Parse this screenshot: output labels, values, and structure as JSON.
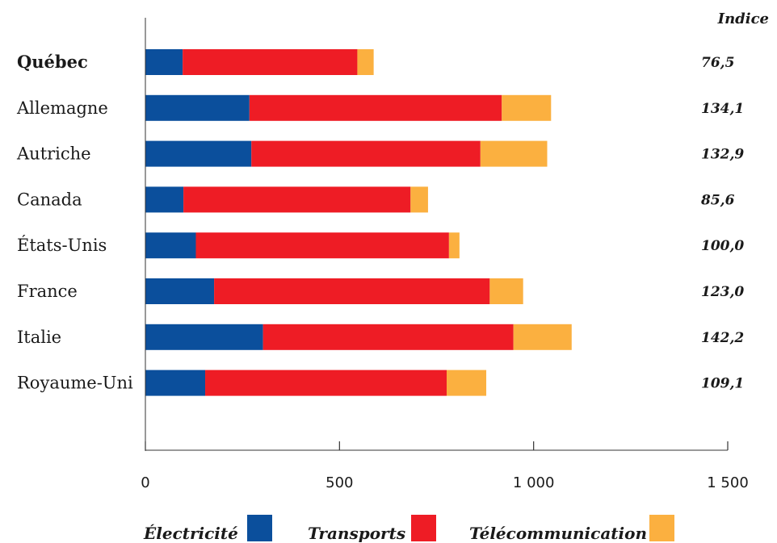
{
  "chart_data": {
    "type": "bar",
    "orientation": "horizontal",
    "stacked": true,
    "categories": [
      "Québec",
      "Allemagne",
      "Autriche",
      "Canada",
      "États-Unis",
      "France",
      "Italie",
      "Royaume-Uni"
    ],
    "highlight_category": "Québec",
    "series": [
      {
        "name": "Électricité",
        "color": "#0b4f9c",
        "values": [
          96,
          268,
          273,
          98,
          130,
          177,
          303,
          154
        ]
      },
      {
        "name": "Transports",
        "color": "#ee1c25",
        "values": [
          450,
          650,
          590,
          585,
          652,
          710,
          645,
          622
        ]
      },
      {
        "name": "Télécommunication",
        "color": "#fbb040",
        "values": [
          42,
          127,
          172,
          45,
          27,
          86,
          150,
          102
        ]
      }
    ],
    "index_header": "Indice",
    "index_values": [
      "76,5",
      "134,1",
      "132,9",
      "85,6",
      "100,0",
      "123,0",
      "142,2",
      "109,1"
    ],
    "xlim": [
      0,
      1500
    ],
    "xticks": [
      0,
      500,
      1000,
      1500
    ],
    "xtick_labels": [
      "0",
      "500",
      "1 000",
      "1 500"
    ],
    "grid": false,
    "legend_position": "bottom"
  }
}
